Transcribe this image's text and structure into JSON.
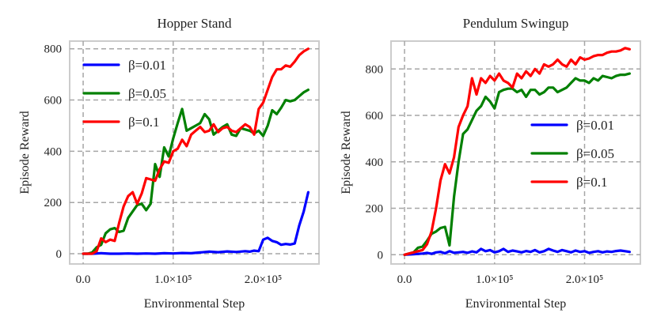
{
  "chart_data": [
    {
      "type": "line",
      "title": "Hopper Stand",
      "xlabel": "Environmental Step",
      "ylabel": "Episode Reward",
      "xlim": [
        -15000,
        262000
      ],
      "ylim": [
        -40,
        830
      ],
      "xticks": [
        0,
        100000,
        200000
      ],
      "xtick_labels": [
        "0.0",
        "1.0×10⁵",
        "2.0×10⁵"
      ],
      "yticks": [
        0,
        200,
        400,
        600,
        800
      ],
      "ytick_labels": [
        "0",
        "200",
        "400",
        "600",
        "800"
      ],
      "grid": true,
      "legend_position": "top-left",
      "series": [
        {
          "name": "β=0.01",
          "color": "#0000ff",
          "x": [
            0,
            10000,
            20000,
            30000,
            40000,
            50000,
            60000,
            70000,
            80000,
            90000,
            100000,
            110000,
            120000,
            130000,
            140000,
            150000,
            160000,
            170000,
            180000,
            185000,
            190000,
            195000,
            200000,
            205000,
            210000,
            215000,
            220000,
            225000,
            230000,
            235000,
            240000,
            245000,
            250000
          ],
          "y": [
            0,
            0,
            2,
            0,
            0,
            1,
            0,
            1,
            0,
            2,
            1,
            3,
            2,
            5,
            8,
            6,
            9,
            7,
            10,
            8,
            12,
            10,
            55,
            62,
            50,
            45,
            35,
            38,
            36,
            40,
            110,
            165,
            240
          ]
        },
        {
          "name": "β=0.05",
          "color": "#008000",
          "x": [
            0,
            5000,
            10000,
            15000,
            20000,
            25000,
            30000,
            35000,
            40000,
            45000,
            50000,
            55000,
            60000,
            65000,
            70000,
            75000,
            80000,
            85000,
            90000,
            95000,
            100000,
            105000,
            110000,
            115000,
            120000,
            125000,
            130000,
            135000,
            140000,
            145000,
            150000,
            155000,
            160000,
            165000,
            170000,
            175000,
            180000,
            185000,
            190000,
            195000,
            200000,
            205000,
            210000,
            215000,
            220000,
            225000,
            230000,
            235000,
            240000,
            245000,
            250000
          ],
          "y": [
            0,
            0,
            5,
            25,
            35,
            80,
            95,
            100,
            85,
            90,
            140,
            165,
            190,
            195,
            170,
            195,
            350,
            300,
            415,
            380,
            450,
            510,
            565,
            480,
            490,
            500,
            510,
            545,
            525,
            465,
            480,
            495,
            505,
            465,
            460,
            490,
            485,
            480,
            470,
            480,
            460,
            500,
            560,
            545,
            570,
            600,
            595,
            600,
            615,
            630,
            640
          ]
        },
        {
          "name": "β=0.1",
          "color": "#ff0000",
          "x": [
            0,
            5000,
            10000,
            15000,
            20000,
            25000,
            30000,
            35000,
            40000,
            45000,
            50000,
            55000,
            60000,
            65000,
            70000,
            75000,
            80000,
            85000,
            90000,
            95000,
            100000,
            105000,
            110000,
            115000,
            120000,
            125000,
            130000,
            135000,
            140000,
            145000,
            150000,
            155000,
            160000,
            165000,
            170000,
            175000,
            180000,
            185000,
            190000,
            195000,
            200000,
            205000,
            210000,
            215000,
            220000,
            225000,
            230000,
            235000,
            240000,
            245000,
            250000
          ],
          "y": [
            0,
            0,
            0,
            10,
            60,
            45,
            55,
            50,
            120,
            185,
            225,
            240,
            195,
            235,
            295,
            290,
            285,
            330,
            360,
            355,
            400,
            410,
            445,
            420,
            465,
            480,
            495,
            475,
            480,
            505,
            475,
            490,
            495,
            480,
            475,
            490,
            505,
            495,
            465,
            565,
            590,
            640,
            690,
            720,
            720,
            735,
            730,
            750,
            775,
            790,
            800
          ]
        }
      ]
    },
    {
      "type": "line",
      "title": "Pendulum Swingup",
      "xlabel": "Environmental Step",
      "ylabel": "Episode Reward",
      "xlim": [
        -15000,
        262000
      ],
      "ylim": [
        -40,
        920
      ],
      "xticks": [
        0,
        100000,
        200000
      ],
      "xtick_labels": [
        "0.0",
        "1.0×10⁵",
        "2.0×10⁵"
      ],
      "yticks": [
        0,
        200,
        400,
        600,
        800
      ],
      "ytick_labels": [
        "0",
        "200",
        "400",
        "600",
        "800"
      ],
      "grid": true,
      "legend_position": "center-right",
      "series": [
        {
          "name": "β=0.01",
          "color": "#0000ff",
          "x": [
            0,
            10000,
            20000,
            25000,
            30000,
            35000,
            40000,
            45000,
            50000,
            55000,
            60000,
            65000,
            70000,
            75000,
            80000,
            85000,
            90000,
            95000,
            100000,
            105000,
            110000,
            115000,
            120000,
            125000,
            130000,
            135000,
            140000,
            145000,
            150000,
            155000,
            160000,
            165000,
            170000,
            175000,
            180000,
            185000,
            190000,
            195000,
            200000,
            205000,
            210000,
            215000,
            220000,
            225000,
            230000,
            235000,
            240000,
            245000,
            250000
          ],
          "y": [
            0,
            2,
            5,
            8,
            4,
            10,
            12,
            6,
            15,
            8,
            10,
            12,
            8,
            14,
            10,
            25,
            15,
            20,
            10,
            15,
            25,
            12,
            18,
            14,
            10,
            16,
            12,
            20,
            10,
            15,
            25,
            18,
            12,
            20,
            15,
            10,
            18,
            12,
            15,
            8,
            12,
            15,
            10,
            14,
            12,
            16,
            18,
            15,
            12
          ]
        },
        {
          "name": "β=0.05",
          "color": "#008000",
          "x": [
            0,
            5000,
            10000,
            15000,
            20000,
            25000,
            30000,
            35000,
            40000,
            45000,
            50000,
            55000,
            60000,
            65000,
            70000,
            75000,
            80000,
            85000,
            90000,
            95000,
            100000,
            105000,
            110000,
            115000,
            120000,
            125000,
            130000,
            135000,
            140000,
            145000,
            150000,
            155000,
            160000,
            165000,
            170000,
            175000,
            180000,
            185000,
            190000,
            195000,
            200000,
            205000,
            210000,
            215000,
            220000,
            225000,
            230000,
            235000,
            240000,
            245000,
            250000
          ],
          "y": [
            0,
            5,
            10,
            30,
            35,
            60,
            90,
            100,
            115,
            120,
            40,
            250,
            400,
            520,
            540,
            580,
            620,
            640,
            680,
            660,
            630,
            700,
            710,
            715,
            715,
            700,
            710,
            680,
            710,
            710,
            690,
            700,
            720,
            720,
            700,
            710,
            720,
            740,
            760,
            750,
            750,
            740,
            760,
            750,
            770,
            765,
            760,
            770,
            775,
            775,
            780
          ]
        },
        {
          "name": "β=0.1",
          "color": "#ff0000",
          "x": [
            0,
            5000,
            10000,
            15000,
            20000,
            25000,
            30000,
            35000,
            40000,
            45000,
            50000,
            55000,
            60000,
            65000,
            70000,
            75000,
            80000,
            85000,
            90000,
            95000,
            100000,
            105000,
            110000,
            115000,
            120000,
            125000,
            130000,
            135000,
            140000,
            145000,
            150000,
            155000,
            160000,
            165000,
            170000,
            175000,
            180000,
            185000,
            190000,
            195000,
            200000,
            205000,
            210000,
            215000,
            220000,
            225000,
            230000,
            235000,
            240000,
            245000,
            250000
          ],
          "y": [
            0,
            5,
            10,
            15,
            20,
            45,
            100,
            200,
            320,
            390,
            350,
            420,
            550,
            600,
            640,
            760,
            690,
            760,
            740,
            770,
            750,
            780,
            750,
            740,
            720,
            780,
            760,
            790,
            770,
            800,
            780,
            820,
            810,
            820,
            840,
            820,
            810,
            840,
            820,
            850,
            840,
            845,
            855,
            860,
            860,
            870,
            875,
            875,
            880,
            890,
            885
          ]
        }
      ]
    }
  ]
}
